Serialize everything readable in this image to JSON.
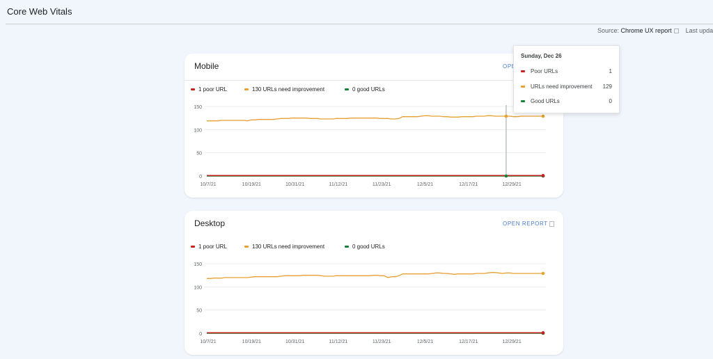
{
  "header": {
    "title": "Core Web Vitals",
    "source_label": "Source:",
    "source_name": "Chrome UX report",
    "last_updated": "Last upda"
  },
  "colors": {
    "poor": "#c5221f",
    "improve": "#e8a030",
    "good": "#188038"
  },
  "charts": [
    {
      "title": "Mobile",
      "open_report": "OPEN REPORT",
      "open_report_visible": "OPEN",
      "legend": [
        "1 poor URL",
        "130 URLs need improvement",
        "0 good URLs"
      ]
    },
    {
      "title": "Desktop",
      "open_report": "OPEN REPORT",
      "legend": [
        "1 poor URL",
        "130 URLs need improvement",
        "0 good URLs"
      ]
    }
  ],
  "tooltip": {
    "title": "Sunday, Dec 26",
    "rows": [
      {
        "label": "Poor URLs",
        "value": "1"
      },
      {
        "label": "URLs need improvement",
        "value": "129"
      },
      {
        "label": "Good URLs",
        "value": "0"
      }
    ]
  },
  "chart_data": [
    {
      "type": "line",
      "x_ticks": [
        "10/7/21",
        "10/19/21",
        "10/31/21",
        "11/12/21",
        "11/23/21",
        "12/5/21",
        "12/17/21",
        "12/29/21"
      ],
      "y_ticks": [
        0,
        50,
        100,
        150
      ],
      "ylim": [
        0,
        150
      ],
      "series": [
        {
          "name": "Poor URLs",
          "values": [
            1,
            1,
            1,
            1,
            1,
            1,
            1,
            1,
            1,
            1,
            1,
            1,
            1,
            1,
            1,
            1,
            1,
            1,
            1,
            1,
            1,
            1,
            1,
            1,
            1,
            1,
            1,
            1,
            1,
            1,
            1,
            1,
            1,
            1,
            1,
            1,
            1,
            1,
            1,
            1,
            1,
            1,
            1,
            1,
            1,
            1,
            1,
            1,
            1,
            1,
            1,
            1,
            1,
            1,
            1,
            1,
            1,
            1,
            1,
            1,
            1,
            1,
            1,
            1,
            1,
            1,
            1,
            1,
            1,
            1,
            1,
            1,
            1,
            1,
            1,
            1,
            1,
            1,
            1,
            1,
            1,
            1,
            1,
            1,
            1,
            1,
            1,
            1,
            1,
            1,
            1,
            1
          ]
        },
        {
          "name": "URLs need improvement",
          "values": [
            119,
            119,
            119,
            119,
            120,
            120,
            120,
            120,
            120,
            120,
            120,
            119,
            121,
            121,
            122,
            122,
            122,
            122,
            122,
            123,
            124,
            124,
            124,
            125,
            125,
            125,
            125,
            125,
            124,
            124,
            124,
            123,
            123,
            123,
            123,
            124,
            124,
            124,
            124,
            125,
            125,
            125,
            125,
            125,
            125,
            125,
            125,
            124,
            124,
            124,
            123,
            123,
            124,
            128,
            128,
            128,
            128,
            128,
            129,
            130,
            130,
            129,
            129,
            129,
            128,
            128,
            127,
            127,
            127,
            128,
            128,
            128,
            128,
            129,
            129,
            129,
            130,
            130,
            129,
            129,
            129,
            129,
            129,
            128,
            128,
            129,
            129,
            129,
            129,
            129,
            129,
            129
          ]
        },
        {
          "name": "Good URLs",
          "values": [
            0,
            0,
            0,
            0,
            0,
            0,
            0,
            0,
            0,
            0,
            0,
            0,
            0,
            0,
            0,
            0,
            0,
            0,
            0,
            0,
            0,
            0,
            0,
            0,
            0,
            0,
            0,
            0,
            0,
            0,
            0,
            0,
            0,
            0,
            0,
            0,
            0,
            0,
            0,
            0,
            0,
            0,
            0,
            0,
            0,
            0,
            0,
            0,
            0,
            0,
            0,
            0,
            0,
            0,
            0,
            0,
            0,
            0,
            0,
            0,
            0,
            0,
            0,
            0,
            0,
            0,
            0,
            0,
            0,
            0,
            0,
            0,
            0,
            0,
            0,
            0,
            0,
            0,
            0,
            0,
            0,
            0,
            0,
            0,
            0,
            0,
            0,
            0,
            0,
            0,
            0,
            0
          ]
        }
      ],
      "hover_index": 81
    },
    {
      "type": "line",
      "x_ticks": [
        "10/7/21",
        "10/19/21",
        "10/31/21",
        "11/12/21",
        "11/23/21",
        "12/5/21",
        "12/17/21",
        "12/29/21"
      ],
      "y_ticks": [
        0,
        50,
        100,
        150
      ],
      "ylim": [
        0,
        150
      ],
      "series": [
        {
          "name": "Poor URLs",
          "values": [
            1,
            1,
            1,
            1,
            1,
            1,
            1,
            1,
            1,
            1,
            1,
            1,
            1,
            1,
            1,
            1,
            1,
            1,
            1,
            1,
            1,
            1,
            1,
            1,
            1,
            1,
            1,
            1,
            1,
            1,
            1,
            1,
            1,
            1,
            1,
            1,
            1,
            1,
            1,
            1,
            1,
            1,
            1,
            1,
            1,
            1,
            1,
            1,
            1,
            1,
            1,
            1,
            1,
            1,
            1,
            1,
            1,
            1,
            1,
            1,
            1,
            1,
            1,
            1,
            1,
            1,
            1,
            1,
            1,
            1,
            1,
            1,
            1,
            1,
            1,
            1,
            1,
            1,
            1,
            1,
            1,
            1,
            1,
            1,
            1,
            1,
            1,
            1,
            1,
            1,
            1,
            1
          ]
        },
        {
          "name": "URLs need improvement",
          "values": [
            118,
            118,
            119,
            119,
            119,
            120,
            120,
            120,
            120,
            120,
            120,
            120,
            121,
            122,
            122,
            122,
            122,
            122,
            122,
            122,
            123,
            124,
            124,
            124,
            124,
            124,
            125,
            125,
            125,
            125,
            125,
            124,
            123,
            123,
            123,
            124,
            124,
            124,
            124,
            124,
            124,
            124,
            124,
            124,
            124,
            125,
            125,
            124,
            124,
            120,
            122,
            122,
            124,
            128,
            128,
            128,
            128,
            128,
            128,
            128,
            128,
            129,
            130,
            130,
            129,
            129,
            128,
            127,
            128,
            128,
            128,
            128,
            128,
            129,
            129,
            129,
            130,
            131,
            131,
            130,
            129,
            130,
            130,
            129,
            129,
            129,
            129,
            129,
            129,
            129,
            129,
            129
          ]
        },
        {
          "name": "Good URLs",
          "values": [
            0,
            0,
            0,
            0,
            0,
            0,
            0,
            0,
            0,
            0,
            0,
            0,
            0,
            0,
            0,
            0,
            0,
            0,
            0,
            0,
            0,
            0,
            0,
            0,
            0,
            0,
            0,
            0,
            0,
            0,
            0,
            0,
            0,
            0,
            0,
            0,
            0,
            0,
            0,
            0,
            0,
            0,
            0,
            0,
            0,
            0,
            0,
            0,
            0,
            0,
            0,
            0,
            0,
            0,
            0,
            0,
            0,
            0,
            0,
            0,
            0,
            0,
            0,
            0,
            0,
            0,
            0,
            0,
            0,
            0,
            0,
            0,
            0,
            0,
            0,
            0,
            0,
            0,
            0,
            0,
            0,
            0,
            0,
            0,
            0,
            0,
            0,
            0,
            0,
            0,
            0,
            0
          ]
        }
      ]
    }
  ]
}
